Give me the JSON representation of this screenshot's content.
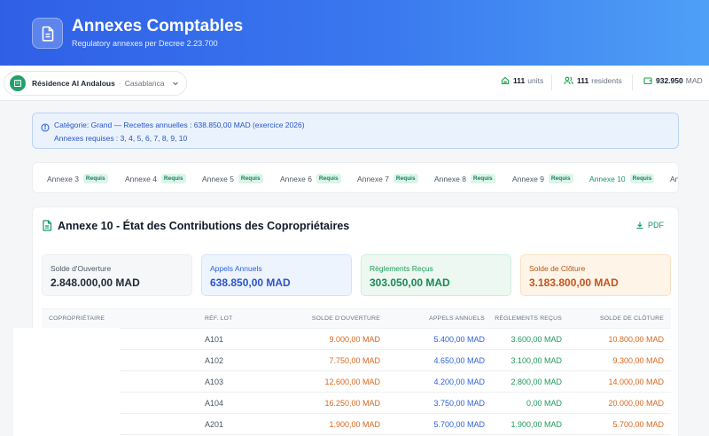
{
  "header": {
    "title": "Annexes Comptables",
    "subtitle": "Regulatory annexes per Decree 2.23.700",
    "icon": "document-icon"
  },
  "topbar": {
    "residence_name": "Résidence Al Andalous",
    "separator": "·",
    "city": "Casablanca",
    "units_count": "111",
    "units_label": "units",
    "residents_count": "111",
    "residents_label": "residents",
    "balance": "932.950",
    "balance_unit": "MAD"
  },
  "notice": {
    "line1": "Catégorie: Grand — Recettes annuelles : 638.850,00 MAD (exercice 2026)",
    "line2": "Annexes requises : 3, 4, 5, 6, 7, 8, 9, 10"
  },
  "tabs": [
    {
      "label": "Annexe 3",
      "badge": "Requis"
    },
    {
      "label": "Annexe 4",
      "badge": "Requis"
    },
    {
      "label": "Annexe 5",
      "badge": "Requis"
    },
    {
      "label": "Annexe 6",
      "badge": "Requis"
    },
    {
      "label": "Annexe 7",
      "badge": "Requis"
    },
    {
      "label": "Annexe 8",
      "badge": "Requis"
    },
    {
      "label": "Annexe 9",
      "badge": "Requis"
    },
    {
      "label": "Annexe 10",
      "badge": "Requis",
      "active": true
    },
    {
      "label": "An",
      "badge": ""
    }
  ],
  "card": {
    "title": "Annexe 10 - État des Contributions des Copropriétaires",
    "pdf_label": "PDF",
    "summary": {
      "opening_label": "Solde d'Ouverture",
      "opening_value": "2.848.000,00 MAD",
      "calls_label": "Appels Annuels",
      "calls_value": "638.850,00 MAD",
      "receipts_label": "Règlements Reçus",
      "receipts_value": "303.050,00 MAD",
      "closing_label": "Solde de Clôture",
      "closing_value": "3.183.800,00 MAD"
    },
    "columns": {
      "owner": "COPROPRIÉTAIRE",
      "lot": "RÉF. LOT",
      "opening": "SOLDE D'OUVERTURE",
      "calls": "APPELS ANNUELS",
      "receipts": "RÈGLEMENTS REÇUS",
      "closing": "SOLDE DE CLÔTURE"
    },
    "rows": [
      {
        "lot": "A101",
        "opening": "9.000,00 MAD",
        "calls": "5.400,00 MAD",
        "receipts": "3.600,00 MAD",
        "closing": "10.800,00 MAD"
      },
      {
        "lot": "A102",
        "opening": "7.750,00 MAD",
        "calls": "4.650,00 MAD",
        "receipts": "3.100,00 MAD",
        "closing": "9.300,00 MAD"
      },
      {
        "lot": "A103",
        "opening": "12.600,00 MAD",
        "calls": "4.200,00 MAD",
        "receipts": "2.800,00 MAD",
        "closing": "14.000,00 MAD"
      },
      {
        "lot": "A104",
        "opening": "16.250,00 MAD",
        "calls": "3.750,00 MAD",
        "receipts": "0,00 MAD",
        "closing": "20.000,00 MAD"
      },
      {
        "lot": "A201",
        "opening": "1.900,00 MAD",
        "calls": "5.700,00 MAD",
        "receipts": "1.900,00 MAD",
        "closing": "5.700,00 MAD"
      }
    ]
  }
}
